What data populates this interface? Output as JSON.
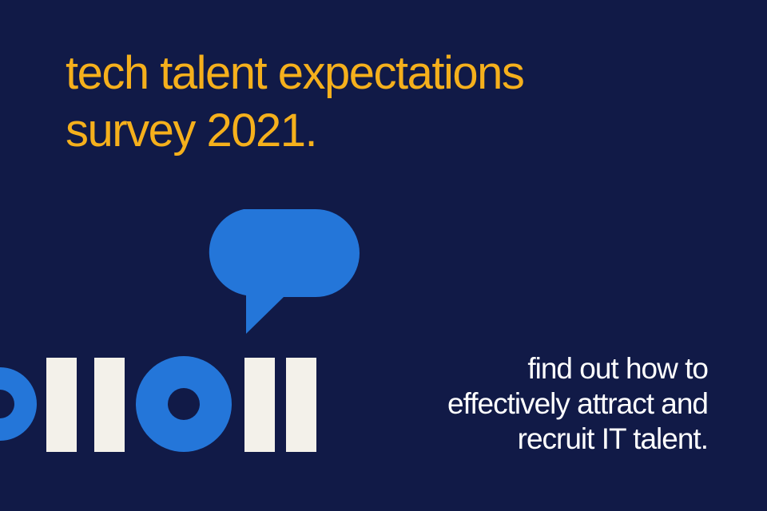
{
  "title": [
    "tech talent expectations",
    "survey 2021."
  ],
  "subtitle": [
    "find out how to",
    "effectively attract and",
    "recruit IT talent."
  ]
}
